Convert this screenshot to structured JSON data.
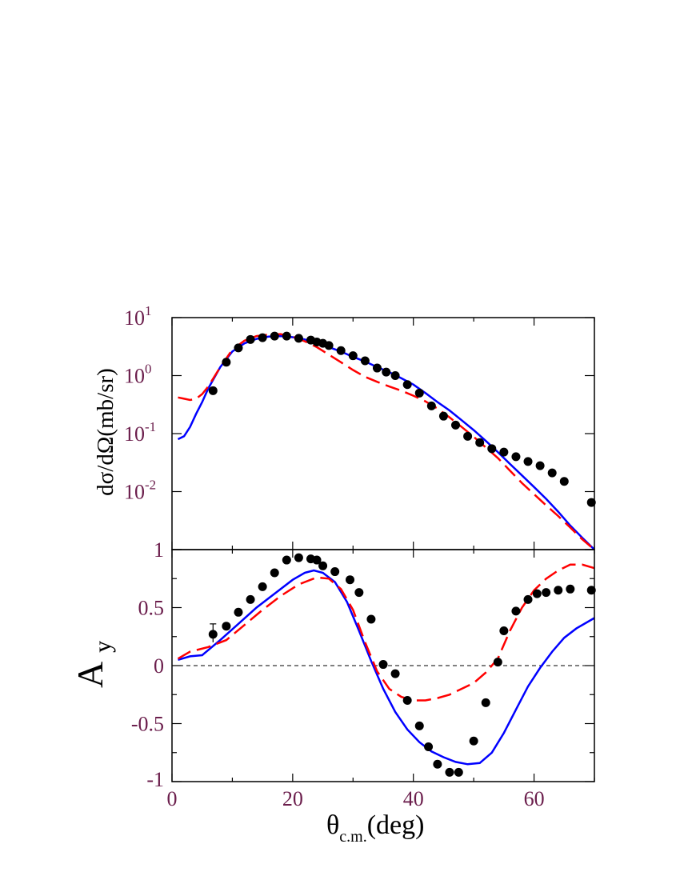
{
  "chart_data": [
    {
      "type": "scatter",
      "panel": "top",
      "ylabel": "dσ/dΩ(mb/sr)",
      "xlabel": "",
      "yscale": "log",
      "xlim": [
        0,
        70
      ],
      "ylim": [
        0.001,
        10
      ],
      "x_ticks": [
        0,
        20,
        40,
        60
      ],
      "y_ticks": [
        {
          "base": "10",
          "exp": "1",
          "value": 10
        },
        {
          "base": "10",
          "exp": "0",
          "value": 1
        },
        {
          "base": "10",
          "exp": "-1",
          "value": 0.1
        },
        {
          "base": "10",
          "exp": "-2",
          "value": 0.01
        }
      ],
      "colors": {
        "solid": "#0000ff",
        "dashed": "#ff0000",
        "points": "#000000"
      },
      "series": [
        {
          "style": "points",
          "x": [
            6.8,
            9,
            11,
            13,
            15,
            17,
            19,
            21,
            23,
            24,
            25,
            26,
            28,
            30,
            32,
            34,
            35.5,
            37,
            39,
            41,
            43,
            45,
            47,
            49,
            51,
            53,
            55,
            57,
            59,
            61,
            63,
            65,
            69.5
          ],
          "y": [
            0.55,
            1.7,
            3.0,
            4.2,
            4.5,
            4.8,
            4.8,
            4.4,
            4.1,
            3.8,
            3.6,
            3.3,
            2.7,
            2.2,
            1.8,
            1.35,
            1.15,
            1.0,
            0.7,
            0.5,
            0.3,
            0.2,
            0.14,
            0.09,
            0.07,
            0.055,
            0.048,
            0.04,
            0.033,
            0.028,
            0.021,
            0.015,
            0.0065
          ]
        },
        {
          "style": "solid",
          "x": [
            1,
            2,
            3,
            4,
            5,
            6,
            8,
            10,
            12,
            14,
            16,
            18,
            20,
            22,
            24,
            26,
            28,
            30,
            32,
            34,
            36,
            38,
            40,
            42,
            44,
            46,
            48,
            50,
            52,
            54,
            56,
            58,
            60,
            62,
            64,
            66,
            68,
            70
          ],
          "y": [
            0.08,
            0.09,
            0.13,
            0.22,
            0.35,
            0.6,
            1.4,
            2.6,
            3.6,
            4.3,
            4.7,
            4.8,
            4.6,
            4.2,
            3.7,
            3.1,
            2.6,
            2.1,
            1.75,
            1.4,
            1.15,
            0.9,
            0.7,
            0.5,
            0.35,
            0.25,
            0.17,
            0.115,
            0.075,
            0.048,
            0.03,
            0.019,
            0.012,
            0.0075,
            0.0045,
            0.0026,
            0.0016,
            0.00095
          ]
        },
        {
          "style": "dashed",
          "x": [
            1,
            2,
            3,
            4,
            5,
            6,
            8,
            10,
            12,
            14,
            16,
            18,
            20,
            22,
            24,
            26,
            28,
            30,
            32,
            34,
            36,
            38,
            40,
            42,
            44,
            46,
            48,
            50,
            52,
            54,
            56,
            58,
            60,
            62,
            64,
            66,
            68,
            70
          ],
          "y": [
            0.42,
            0.4,
            0.38,
            0.4,
            0.48,
            0.65,
            1.4,
            2.8,
            4.0,
            4.8,
            5.1,
            5.2,
            4.7,
            3.9,
            3.1,
            2.3,
            1.7,
            1.25,
            0.95,
            0.78,
            0.65,
            0.55,
            0.45,
            0.36,
            0.27,
            0.19,
            0.13,
            0.088,
            0.058,
            0.038,
            0.023,
            0.014,
            0.009,
            0.0058,
            0.0038,
            0.0024,
            0.0015,
            0.00095
          ]
        }
      ]
    },
    {
      "type": "scatter",
      "panel": "bottom",
      "ylabel": "A",
      "ylabel_sub": "y",
      "xlabel": "θ",
      "xlabel_sub": "c.m.",
      "xlabel_suffix": "(deg)",
      "xlim": [
        0,
        70
      ],
      "ylim": [
        -1,
        1
      ],
      "x_ticks": [
        0,
        20,
        40,
        60
      ],
      "y_ticks": [
        "1",
        "0.5",
        "0",
        "-0.5",
        "-1"
      ],
      "colors": {
        "solid": "#0000ff",
        "dashed": "#ff0000",
        "points": "#000000"
      },
      "series": [
        {
          "style": "points",
          "x": [
            6.8,
            9,
            11,
            13,
            15,
            17,
            19,
            21,
            23,
            24,
            25,
            27,
            29.5,
            31,
            33,
            35,
            37,
            39,
            41,
            42.5,
            44,
            46,
            47.5,
            50,
            52,
            54,
            55,
            57,
            59,
            60.5,
            62,
            64,
            66,
            69.5
          ],
          "y": [
            0.27,
            0.34,
            0.46,
            0.57,
            0.68,
            0.8,
            0.91,
            0.93,
            0.92,
            0.91,
            0.86,
            0.81,
            0.74,
            0.63,
            0.4,
            0.01,
            -0.07,
            -0.3,
            -0.52,
            -0.7,
            -0.85,
            -0.92,
            -0.92,
            -0.65,
            -0.32,
            0.03,
            0.3,
            0.47,
            0.57,
            0.62,
            0.63,
            0.65,
            0.66,
            0.65
          ]
        },
        {
          "style": "solid",
          "x": [
            1,
            3,
            5,
            8,
            11,
            14,
            17,
            20,
            22,
            23.5,
            25,
            27,
            29,
            31,
            33,
            35,
            37,
            39,
            41,
            43,
            45,
            47,
            49,
            51,
            53,
            55,
            57,
            59,
            61,
            63,
            65,
            67,
            70
          ],
          "y": [
            0.05,
            0.08,
            0.09,
            0.22,
            0.36,
            0.5,
            0.62,
            0.74,
            0.8,
            0.82,
            0.8,
            0.72,
            0.55,
            0.3,
            0.04,
            -0.2,
            -0.4,
            -0.55,
            -0.66,
            -0.74,
            -0.79,
            -0.83,
            -0.85,
            -0.84,
            -0.75,
            -0.58,
            -0.38,
            -0.18,
            -0.02,
            0.12,
            0.24,
            0.32,
            0.41
          ]
        },
        {
          "style": "dashed",
          "x": [
            1,
            3,
            6,
            9,
            12,
            15,
            18,
            21,
            24,
            26,
            28,
            30,
            32,
            34,
            36,
            38,
            40,
            42,
            44,
            46,
            48,
            50,
            52,
            54,
            56,
            58,
            60,
            62,
            64,
            66,
            68,
            70
          ],
          "y": [
            0.06,
            0.12,
            0.16,
            0.22,
            0.35,
            0.48,
            0.6,
            0.7,
            0.76,
            0.75,
            0.66,
            0.48,
            0.2,
            -0.05,
            -0.2,
            -0.27,
            -0.3,
            -0.3,
            -0.28,
            -0.25,
            -0.2,
            -0.15,
            -0.06,
            0.06,
            0.3,
            0.5,
            0.65,
            0.75,
            0.82,
            0.87,
            0.87,
            0.84
          ]
        }
      ]
    }
  ]
}
